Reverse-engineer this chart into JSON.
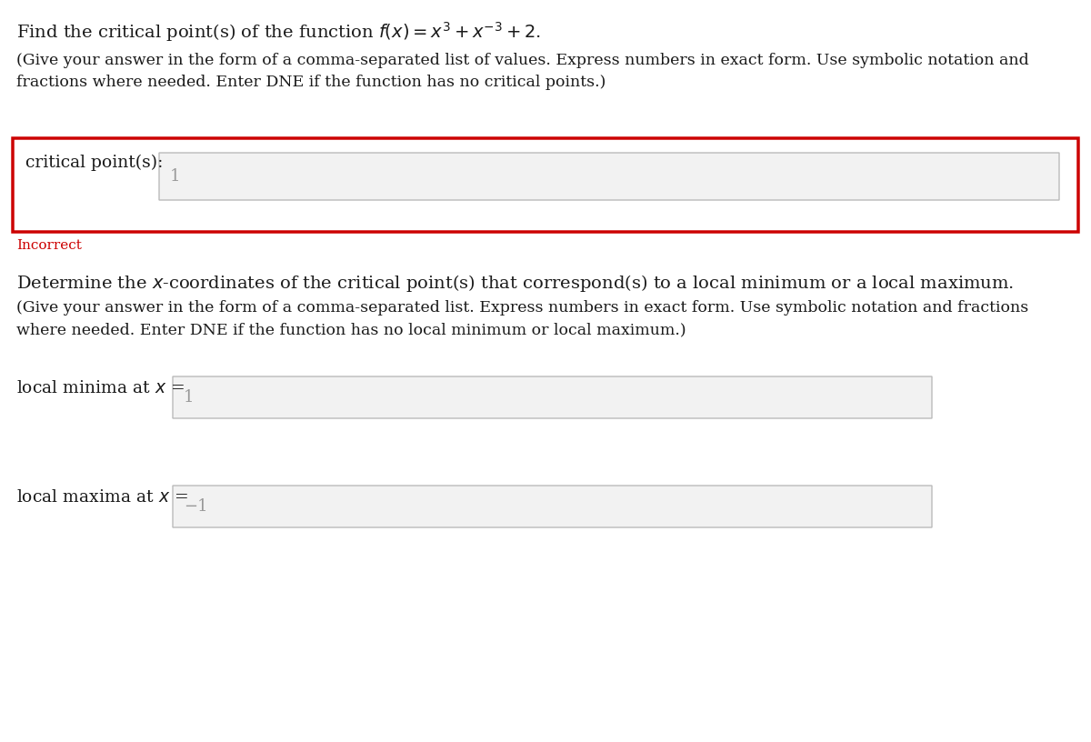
{
  "bg_color": "#ffffff",
  "title_line1": "Find the critical point(s) of the function $f(x) = x^3 + x^{-3} + 2$.",
  "subtitle_line1": "(Give your answer in the form of a comma-separated list of values. Express numbers in exact form. Use symbolic notation and",
  "subtitle_line2": "fractions where needed. Enter DNE if the function has no critical points.)",
  "label1": "critical point(s):",
  "answer1": "1",
  "incorrect_text": "Incorrect",
  "label2_line1": "Determine the $x$-coordinates of the critical point(s) that correspond(s) to a local minimum or a local maximum.",
  "label2_line2": "(Give your answer in the form of a comma-separated list. Express numbers in exact form. Use symbolic notation and fractions",
  "label2_line3": "where needed. Enter DNE if the function has no local minimum or local maximum.)",
  "label_minima": "local minima at $x$ =",
  "answer_minima": "1",
  "label_maxima": "local maxima at $x$ =",
  "answer_maxima": "−1",
  "text_color": "#1a1a1a",
  "incorrect_color": "#cc0000",
  "box_bg": "#f2f2f2",
  "box_border": "#bbbbbb",
  "red_border_color": "#cc0000",
  "answer_text_color": "#999999",
  "font_title": 14,
  "font_body": 12.5,
  "font_label": 13.5,
  "font_answer": 13
}
